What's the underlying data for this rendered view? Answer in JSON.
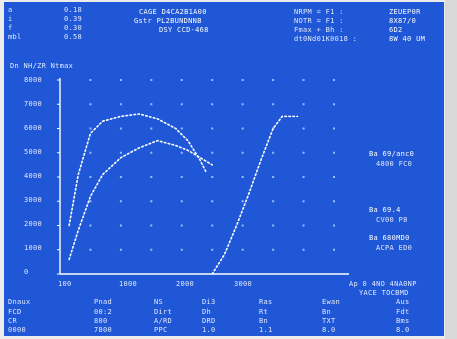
{
  "screen": {
    "header_left": {
      "rows": [
        {
          "label": "a",
          "val": "0.18"
        },
        {
          "label": "i",
          "val": "0.39"
        },
        {
          "label": "f",
          "val": "0.30"
        },
        {
          "label": "mbl",
          "val": "0.58"
        }
      ]
    },
    "header_center": [
      "CAGE D4CA2B1A00",
      "Gstr PL2BUNDNNB",
      "DSY CCD-468"
    ],
    "header_right_labels": [
      "NRPM = F1 :",
      "NOTR = F1 :",
      "Fmax + Bh :",
      "dt0Nd01K0018 :"
    ],
    "header_right_values": [
      "ZEUEP0R",
      "8X87/0",
      "6D2",
      "8W 40 UM"
    ],
    "y_axis_title": "Dn  NH/ZR  Ntmax",
    "y_tick_labels": [
      "8000",
      "7000",
      "6000",
      "5000",
      "4000",
      "3000",
      "2000",
      "1000",
      "0"
    ],
    "x_tick_labels": [
      "100",
      "1000",
      "2000",
      "3000"
    ],
    "right_annotations": [
      {
        "line1": "Ba    69/anc0",
        "line2": "4800 FC0"
      },
      {
        "line1": "Ba    69.4",
        "line2": "CV00 P8"
      },
      {
        "line1": "Ba    680MD0",
        "line2": "ACPA ED0"
      }
    ],
    "bottom_right_caption": [
      "Ap 0 4NO 4NA0NP",
      "YACE TOCBMD"
    ],
    "bottom_table": {
      "headers": [
        "Dnaux",
        "Pnad",
        "NS",
        "Di3",
        "Ras",
        "Ewan",
        "Aus"
      ],
      "rows": [
        [
          "FCD",
          "00:2",
          "Dirt",
          "Dh",
          "Rt",
          "Bn",
          "Fdt"
        ],
        [
          "CR",
          "800",
          "A/RD",
          "DRD",
          "Bn",
          "TXT",
          "Bms"
        ],
        [
          "0000",
          "7800",
          "PPC",
          "1.0",
          "1.1",
          "8.0",
          "8.0"
        ]
      ]
    }
  },
  "chart_data": {
    "type": "line",
    "title": "",
    "ylabel": "Dn  NH/ZR  Ntmax",
    "ylim": [
      0,
      8000
    ],
    "xlim": [
      0,
      4500
    ],
    "grid": "dotted",
    "series": [
      {
        "values_xy": [
          [
            150,
            2000
          ],
          [
            300,
            4100
          ],
          [
            500,
            5800
          ],
          [
            700,
            6300
          ],
          [
            1000,
            6500
          ],
          [
            1300,
            6600
          ],
          [
            1600,
            6400
          ],
          [
            1900,
            6000
          ],
          [
            2100,
            5500
          ],
          [
            2300,
            4700
          ],
          [
            2400,
            4200
          ]
        ]
      },
      {
        "values_xy": [
          [
            150,
            600
          ],
          [
            300,
            1800
          ],
          [
            500,
            3200
          ],
          [
            700,
            4100
          ],
          [
            1000,
            4800
          ],
          [
            1300,
            5200
          ],
          [
            1600,
            5500
          ],
          [
            1900,
            5300
          ],
          [
            2100,
            5100
          ],
          [
            2300,
            4800
          ],
          [
            2500,
            4500
          ]
        ]
      },
      {
        "values_xy": [
          [
            2500,
            0
          ],
          [
            2700,
            800
          ],
          [
            2900,
            2000
          ],
          [
            3100,
            3300
          ],
          [
            3300,
            4700
          ],
          [
            3500,
            6000
          ],
          [
            3650,
            6500
          ],
          [
            3900,
            6500
          ]
        ]
      }
    ],
    "colors": {
      "background": "#1f57d6",
      "lines": "#ffffff"
    }
  }
}
